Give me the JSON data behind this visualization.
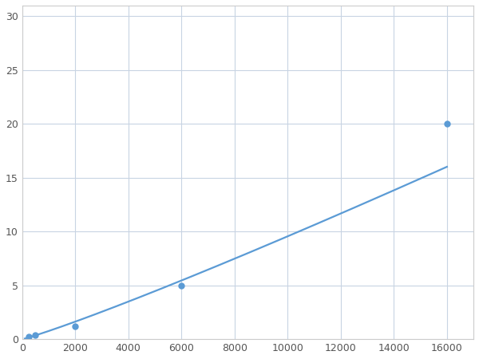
{
  "x": [
    250,
    500,
    2000,
    6000,
    16000
  ],
  "y": [
    0.2,
    0.35,
    1.2,
    5.0,
    20.0
  ],
  "line_color": "#5b9bd5",
  "marker_color": "#5b9bd5",
  "marker_size": 5,
  "marker_style": "o",
  "line_width": 1.6,
  "xlim": [
    0,
    17000
  ],
  "ylim": [
    0,
    31
  ],
  "xticks": [
    0,
    2000,
    4000,
    6000,
    8000,
    10000,
    12000,
    14000,
    16000
  ],
  "yticks": [
    0,
    5,
    10,
    15,
    20,
    25,
    30
  ],
  "grid_color": "#c8d4e3",
  "grid_linewidth": 0.8,
  "background_color": "#ffffff",
  "figsize": [
    6.0,
    4.5
  ],
  "dpi": 100
}
